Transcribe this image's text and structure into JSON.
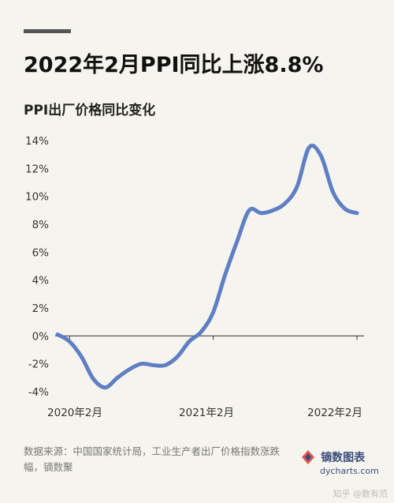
{
  "header": {
    "title": "2022年2月PPI同比上涨8.8%"
  },
  "chart_data": {
    "type": "line",
    "title": "PPI出厂价格同比变化",
    "xlabel": "",
    "ylabel": "",
    "x": [
      "2020-01",
      "2020-02",
      "2020-03",
      "2020-04",
      "2020-05",
      "2020-06",
      "2020-07",
      "2020-08",
      "2020-09",
      "2020-10",
      "2020-11",
      "2020-12",
      "2021-01",
      "2021-02",
      "2021-03",
      "2021-04",
      "2021-05",
      "2021-06",
      "2021-07",
      "2021-08",
      "2021-09",
      "2021-10",
      "2021-11",
      "2021-12",
      "2022-01",
      "2022-02"
    ],
    "series": [
      {
        "values": [
          0.1,
          -0.4,
          -1.5,
          -3.1,
          -3.7,
          -3.0,
          -2.4,
          -2.0,
          -2.1,
          -2.1,
          -1.5,
          -0.4,
          0.3,
          1.7,
          4.4,
          6.8,
          9.0,
          8.8,
          9.0,
          9.5,
          10.7,
          13.5,
          12.9,
          10.3,
          9.1,
          8.8
        ]
      }
    ],
    "x_tick_labels": [
      "2020年2月",
      "2021年2月",
      "2022年2月"
    ],
    "y_tick_labels": [
      "14%",
      "12%",
      "10%",
      "8%",
      "6%",
      "4%",
      "2%",
      "0%",
      "-2%",
      "-4%"
    ],
    "ylim": [
      -4,
      14
    ],
    "grid": false,
    "line_color": "#5f7fc4"
  },
  "footer": {
    "source": "数据来源：中国国家统计局，工业生产者出厂价格指数涨跌幅，镝数聚",
    "brand_name": "镝数图表",
    "brand_url": "dycharts.com",
    "marks": "知乎 @数有范"
  }
}
